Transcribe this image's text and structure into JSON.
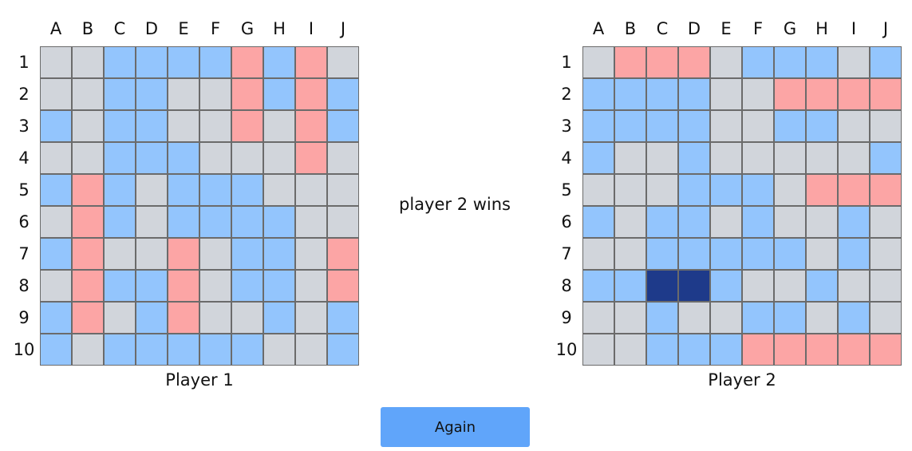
{
  "columns": [
    "A",
    "B",
    "C",
    "D",
    "E",
    "F",
    "G",
    "H",
    "I",
    "J"
  ],
  "rows": [
    "1",
    "2",
    "3",
    "4",
    "5",
    "6",
    "7",
    "8",
    "9",
    "10"
  ],
  "legend": {
    "e": "empty",
    "m": "miss",
    "h": "hit",
    "s": "ship"
  },
  "colors": {
    "empty": "#d1d5db",
    "miss": "#93c5fd",
    "hit": "#fca5a5",
    "ship": "#1e3a8a",
    "button": "#60a5fa"
  },
  "status": "player 2 wins",
  "again_label": "Again",
  "boards": [
    {
      "label": "Player 1",
      "grid": [
        "eemmmmhmhe",
        "eemmeehmhm",
        "memmeehehm",
        "eemmmeeehe",
        "mhmemmmeee",
        "ehmemmmmee",
        "mheehemmeh",
        "ehmmhemmeh",
        "mhemheemem",
        "memmmmmeem"
      ]
    },
    {
      "label": "Player 2",
      "grid": [
        "ehhhemmmem",
        "mmmmeehhhh",
        "mmmmeemmee",
        "meemeeeeem",
        "eeemmmehhh",
        "memmemeeme",
        "eemmmmmeme",
        "mmssmeemee",
        "eemeemmeme",
        "eemmmhhhhh"
      ]
    }
  ]
}
